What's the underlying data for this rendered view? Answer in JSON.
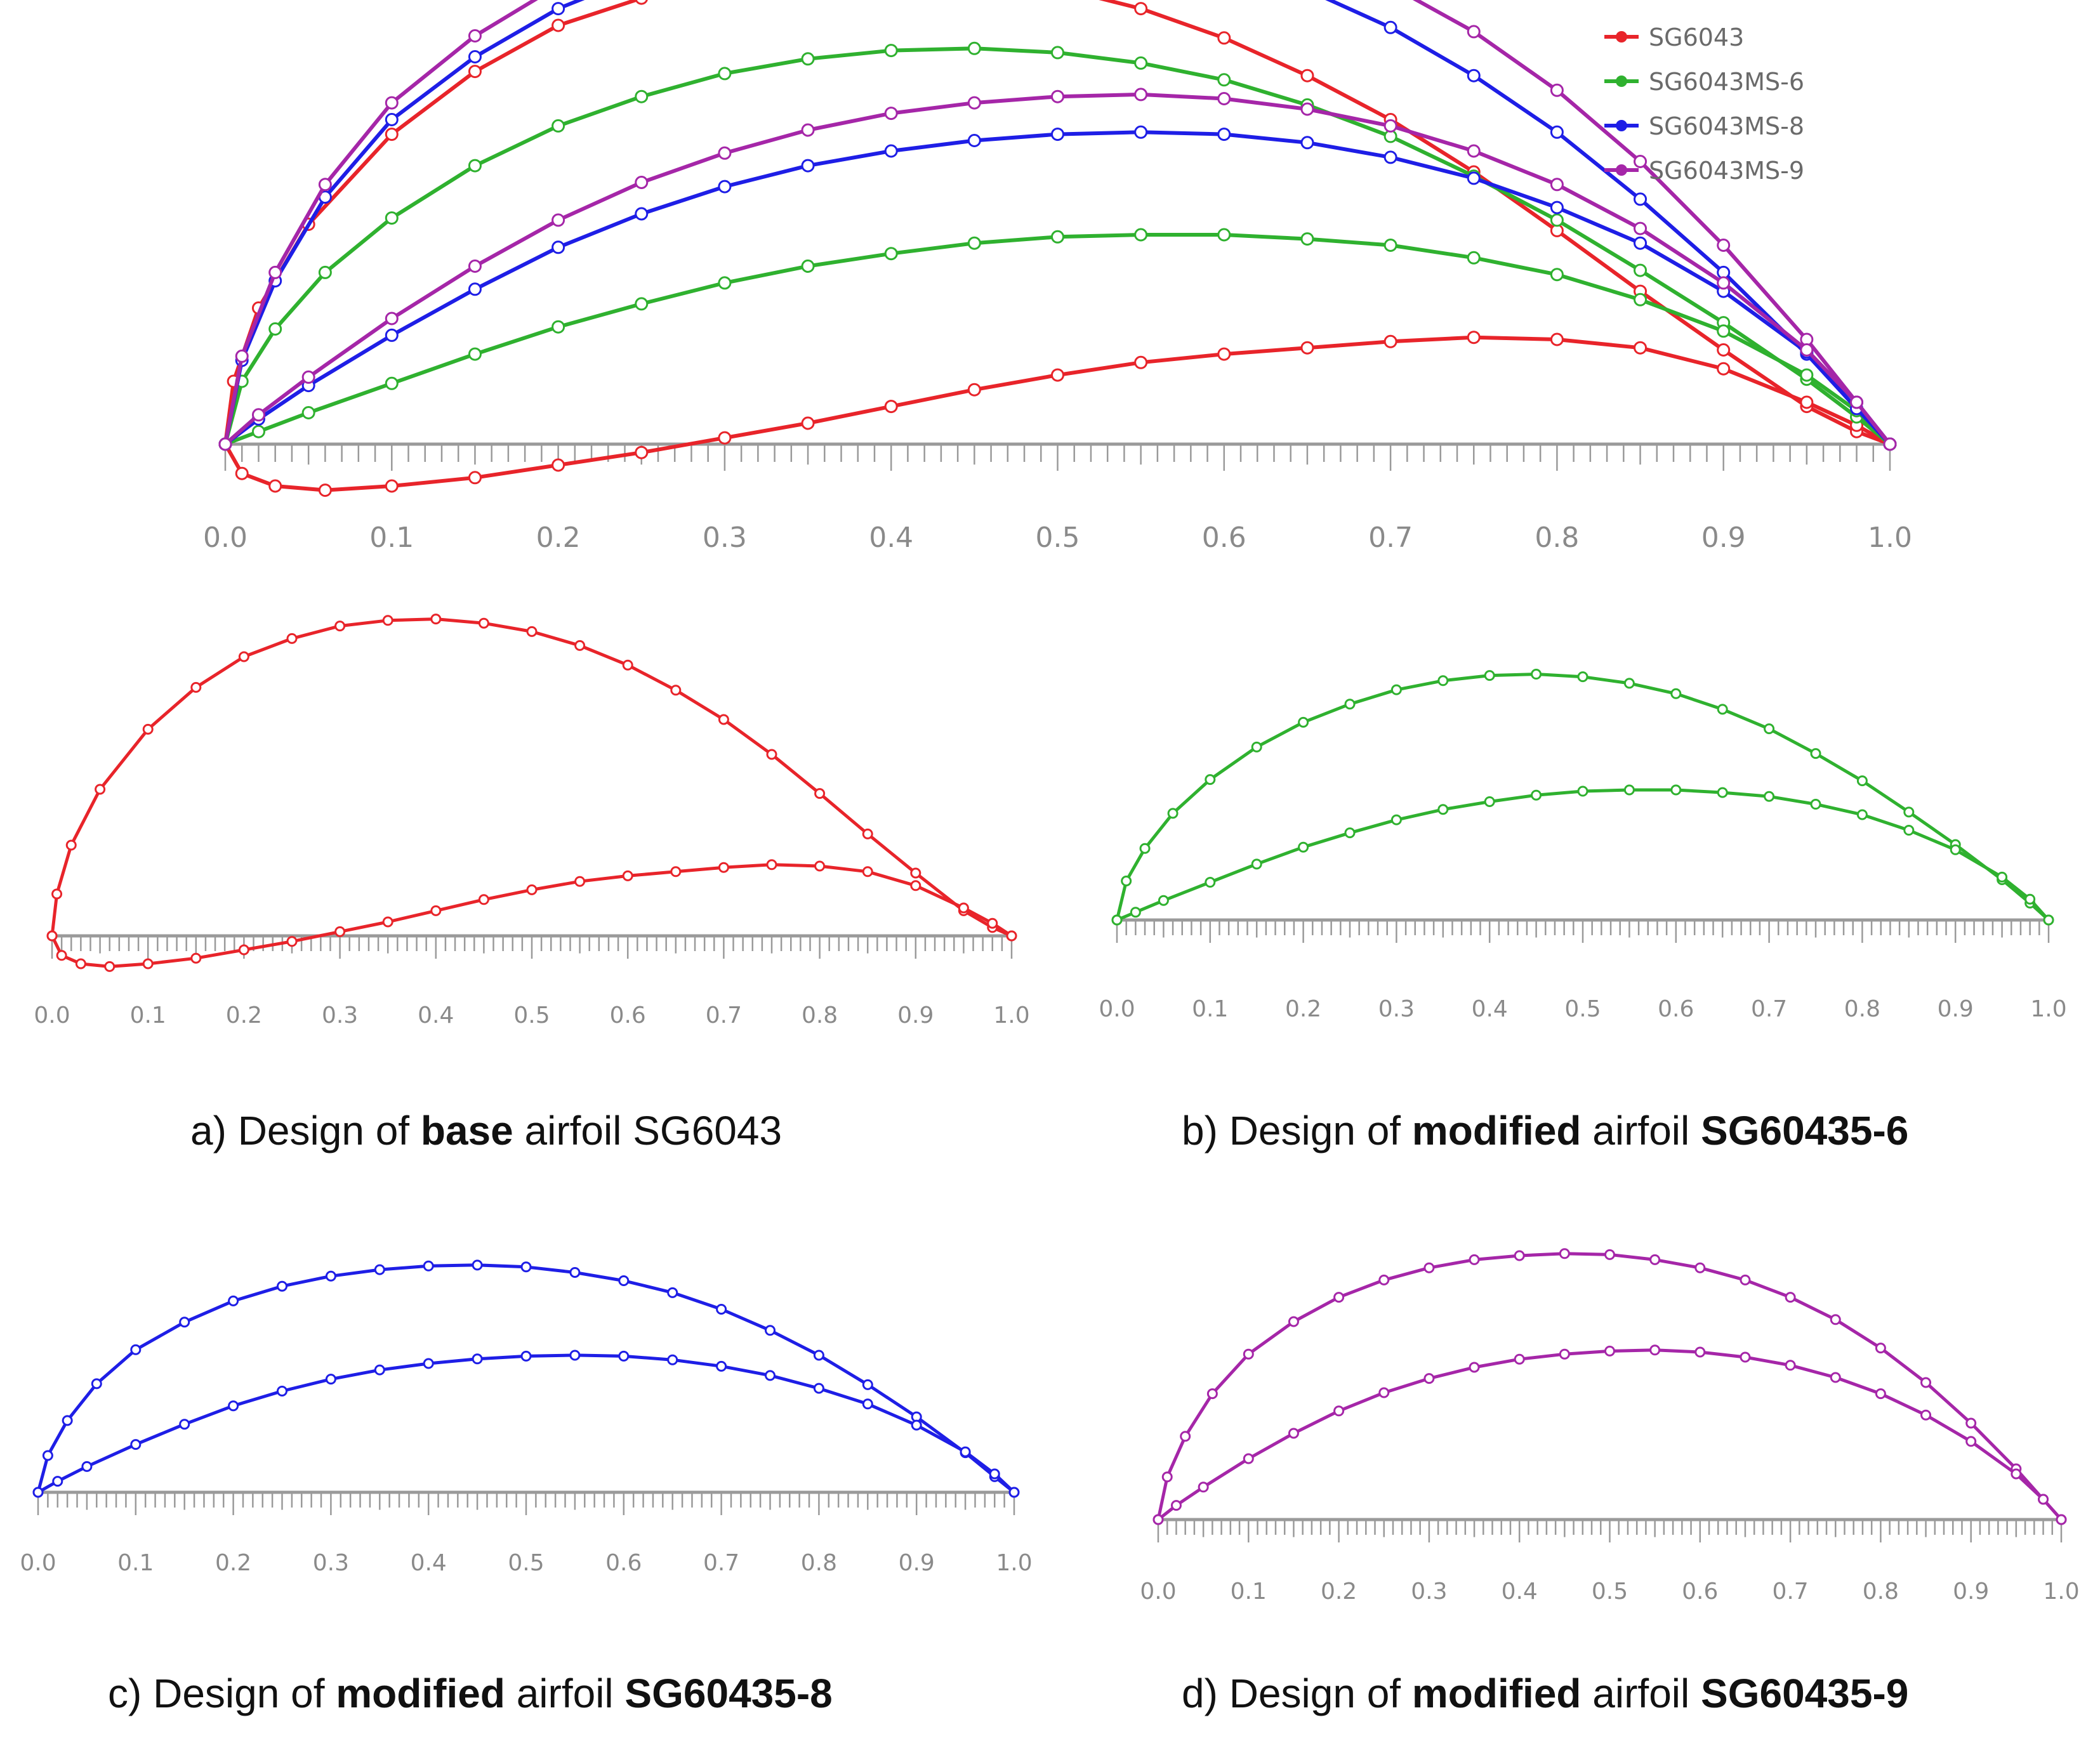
{
  "colors": {
    "sg6043": "#e8242a",
    "sg6043ms6": "#2fb12f",
    "sg6043ms8": "#1e1ee6",
    "sg6043ms9": "#a526a8",
    "axis": "#9a9a9a",
    "tick_label": "#8a8a8a"
  },
  "legend": {
    "items": [
      {
        "label": "SG6043",
        "color": "#e8242a"
      },
      {
        "label": "SG6043MS-6",
        "color": "#2fb12f"
      },
      {
        "label": "SG6043MS-8",
        "color": "#1e1ee6"
      },
      {
        "label": "SG6043MS-9",
        "color": "#a526a8"
      }
    ]
  },
  "axis_ticks": [
    "0.0",
    "0.1",
    "0.2",
    "0.3",
    "0.4",
    "0.5",
    "0.6",
    "0.7",
    "0.8",
    "0.9",
    "1.0"
  ],
  "captions": {
    "a": {
      "pre": "a) Design of ",
      "bold1": "base",
      "mid": " airfoil SG6043",
      "bold2": ""
    },
    "b": {
      "pre": "b) Design of ",
      "bold1": "modified",
      "mid": " airfoil ",
      "bold2": "SG60435-6"
    },
    "c": {
      "pre": "c) Design of ",
      "bold1": "modified",
      "mid": " airfoil ",
      "bold2": "SG60435-8"
    },
    "d": {
      "pre": "d) Design of ",
      "bold1": "modified",
      "mid": " airfoil ",
      "bold2": "SG60435-9"
    }
  },
  "airfoils": {
    "SG6043": {
      "upper": [
        [
          0,
          0
        ],
        [
          0.005,
          0.03
        ],
        [
          0.02,
          0.065
        ],
        [
          0.05,
          0.105
        ],
        [
          0.1,
          0.148
        ],
        [
          0.15,
          0.178
        ],
        [
          0.2,
          0.2
        ],
        [
          0.25,
          0.213
        ],
        [
          0.3,
          0.222
        ],
        [
          0.35,
          0.226
        ],
        [
          0.4,
          0.227
        ],
        [
          0.45,
          0.224
        ],
        [
          0.5,
          0.218
        ],
        [
          0.55,
          0.208
        ],
        [
          0.6,
          0.194
        ],
        [
          0.65,
          0.176
        ],
        [
          0.7,
          0.155
        ],
        [
          0.75,
          0.13
        ],
        [
          0.8,
          0.102
        ],
        [
          0.85,
          0.073
        ],
        [
          0.9,
          0.045
        ],
        [
          0.95,
          0.018
        ],
        [
          0.98,
          0.006
        ],
        [
          1,
          0
        ]
      ],
      "lower": [
        [
          0,
          0
        ],
        [
          0.01,
          -0.014
        ],
        [
          0.03,
          -0.02
        ],
        [
          0.06,
          -0.022
        ],
        [
          0.1,
          -0.02
        ],
        [
          0.15,
          -0.016
        ],
        [
          0.2,
          -0.01
        ],
        [
          0.25,
          -0.004
        ],
        [
          0.3,
          0.003
        ],
        [
          0.35,
          0.01
        ],
        [
          0.4,
          0.018
        ],
        [
          0.45,
          0.026
        ],
        [
          0.5,
          0.033
        ],
        [
          0.55,
          0.039
        ],
        [
          0.6,
          0.043
        ],
        [
          0.65,
          0.046
        ],
        [
          0.7,
          0.049
        ],
        [
          0.75,
          0.051
        ],
        [
          0.8,
          0.05
        ],
        [
          0.85,
          0.046
        ],
        [
          0.9,
          0.036
        ],
        [
          0.95,
          0.02
        ],
        [
          0.98,
          0.009
        ],
        [
          1,
          0
        ]
      ]
    },
    "SG6043MS-6": {
      "upper": [
        [
          0,
          0
        ],
        [
          0.01,
          0.03
        ],
        [
          0.03,
          0.055
        ],
        [
          0.06,
          0.082
        ],
        [
          0.1,
          0.108
        ],
        [
          0.15,
          0.133
        ],
        [
          0.2,
          0.152
        ],
        [
          0.25,
          0.166
        ],
        [
          0.3,
          0.177
        ],
        [
          0.35,
          0.184
        ],
        [
          0.4,
          0.188
        ],
        [
          0.45,
          0.189
        ],
        [
          0.5,
          0.187
        ],
        [
          0.55,
          0.182
        ],
        [
          0.6,
          0.174
        ],
        [
          0.65,
          0.162
        ],
        [
          0.7,
          0.147
        ],
        [
          0.75,
          0.128
        ],
        [
          0.8,
          0.107
        ],
        [
          0.85,
          0.083
        ],
        [
          0.9,
          0.058
        ],
        [
          0.95,
          0.031
        ],
        [
          0.98,
          0.013
        ],
        [
          1,
          0
        ]
      ],
      "lower": [
        [
          0,
          0
        ],
        [
          0.02,
          0.006
        ],
        [
          0.05,
          0.015
        ],
        [
          0.1,
          0.029
        ],
        [
          0.15,
          0.043
        ],
        [
          0.2,
          0.056
        ],
        [
          0.25,
          0.067
        ],
        [
          0.3,
          0.077
        ],
        [
          0.35,
          0.085
        ],
        [
          0.4,
          0.091
        ],
        [
          0.45,
          0.096
        ],
        [
          0.5,
          0.099
        ],
        [
          0.55,
          0.1
        ],
        [
          0.6,
          0.1
        ],
        [
          0.65,
          0.098
        ],
        [
          0.7,
          0.095
        ],
        [
          0.75,
          0.089
        ],
        [
          0.8,
          0.081
        ],
        [
          0.85,
          0.069
        ],
        [
          0.9,
          0.054
        ],
        [
          0.95,
          0.033
        ],
        [
          0.98,
          0.016
        ],
        [
          1,
          0
        ]
      ]
    },
    "SG6043MS-8": {
      "upper": [
        [
          0,
          0
        ],
        [
          0.01,
          0.04
        ],
        [
          0.03,
          0.078
        ],
        [
          0.06,
          0.118
        ],
        [
          0.1,
          0.155
        ],
        [
          0.15,
          0.185
        ],
        [
          0.2,
          0.208
        ],
        [
          0.25,
          0.224
        ],
        [
          0.3,
          0.235
        ],
        [
          0.35,
          0.242
        ],
        [
          0.4,
          0.246
        ],
        [
          0.45,
          0.247
        ],
        [
          0.5,
          0.245
        ],
        [
          0.55,
          0.239
        ],
        [
          0.6,
          0.23
        ],
        [
          0.65,
          0.217
        ],
        [
          0.7,
          0.199
        ],
        [
          0.75,
          0.176
        ],
        [
          0.8,
          0.149
        ],
        [
          0.85,
          0.117
        ],
        [
          0.9,
          0.082
        ],
        [
          0.95,
          0.043
        ],
        [
          0.98,
          0.017
        ],
        [
          1,
          0
        ]
      ],
      "lower": [
        [
          0,
          0
        ],
        [
          0.02,
          0.012
        ],
        [
          0.05,
          0.028
        ],
        [
          0.1,
          0.052
        ],
        [
          0.15,
          0.074
        ],
        [
          0.2,
          0.094
        ],
        [
          0.25,
          0.11
        ],
        [
          0.3,
          0.123
        ],
        [
          0.35,
          0.133
        ],
        [
          0.4,
          0.14
        ],
        [
          0.45,
          0.145
        ],
        [
          0.5,
          0.148
        ],
        [
          0.55,
          0.149
        ],
        [
          0.6,
          0.148
        ],
        [
          0.65,
          0.144
        ],
        [
          0.7,
          0.137
        ],
        [
          0.75,
          0.127
        ],
        [
          0.8,
          0.113
        ],
        [
          0.85,
          0.096
        ],
        [
          0.9,
          0.073
        ],
        [
          0.95,
          0.044
        ],
        [
          0.98,
          0.02
        ],
        [
          1,
          0
        ]
      ]
    },
    "SG6043MS-9": {
      "upper": [
        [
          0,
          0
        ],
        [
          0.01,
          0.042
        ],
        [
          0.03,
          0.082
        ],
        [
          0.06,
          0.124
        ],
        [
          0.1,
          0.163
        ],
        [
          0.15,
          0.195
        ],
        [
          0.2,
          0.219
        ],
        [
          0.25,
          0.236
        ],
        [
          0.3,
          0.248
        ],
        [
          0.35,
          0.256
        ],
        [
          0.4,
          0.26
        ],
        [
          0.45,
          0.262
        ],
        [
          0.5,
          0.261
        ],
        [
          0.55,
          0.256
        ],
        [
          0.6,
          0.248
        ],
        [
          0.65,
          0.236
        ],
        [
          0.7,
          0.219
        ],
        [
          0.75,
          0.197
        ],
        [
          0.8,
          0.169
        ],
        [
          0.85,
          0.135
        ],
        [
          0.9,
          0.095
        ],
        [
          0.95,
          0.05
        ],
        [
          0.98,
          0.02
        ],
        [
          1,
          0
        ]
      ],
      "lower": [
        [
          0,
          0
        ],
        [
          0.02,
          0.014
        ],
        [
          0.05,
          0.032
        ],
        [
          0.1,
          0.06
        ],
        [
          0.15,
          0.085
        ],
        [
          0.2,
          0.107
        ],
        [
          0.25,
          0.125
        ],
        [
          0.3,
          0.139
        ],
        [
          0.35,
          0.15
        ],
        [
          0.4,
          0.158
        ],
        [
          0.45,
          0.163
        ],
        [
          0.5,
          0.166
        ],
        [
          0.55,
          0.167
        ],
        [
          0.6,
          0.165
        ],
        [
          0.65,
          0.16
        ],
        [
          0.7,
          0.152
        ],
        [
          0.75,
          0.14
        ],
        [
          0.8,
          0.124
        ],
        [
          0.85,
          0.103
        ],
        [
          0.9,
          0.077
        ],
        [
          0.95,
          0.045
        ],
        [
          0.98,
          0.02
        ],
        [
          1,
          0
        ]
      ]
    }
  }
}
